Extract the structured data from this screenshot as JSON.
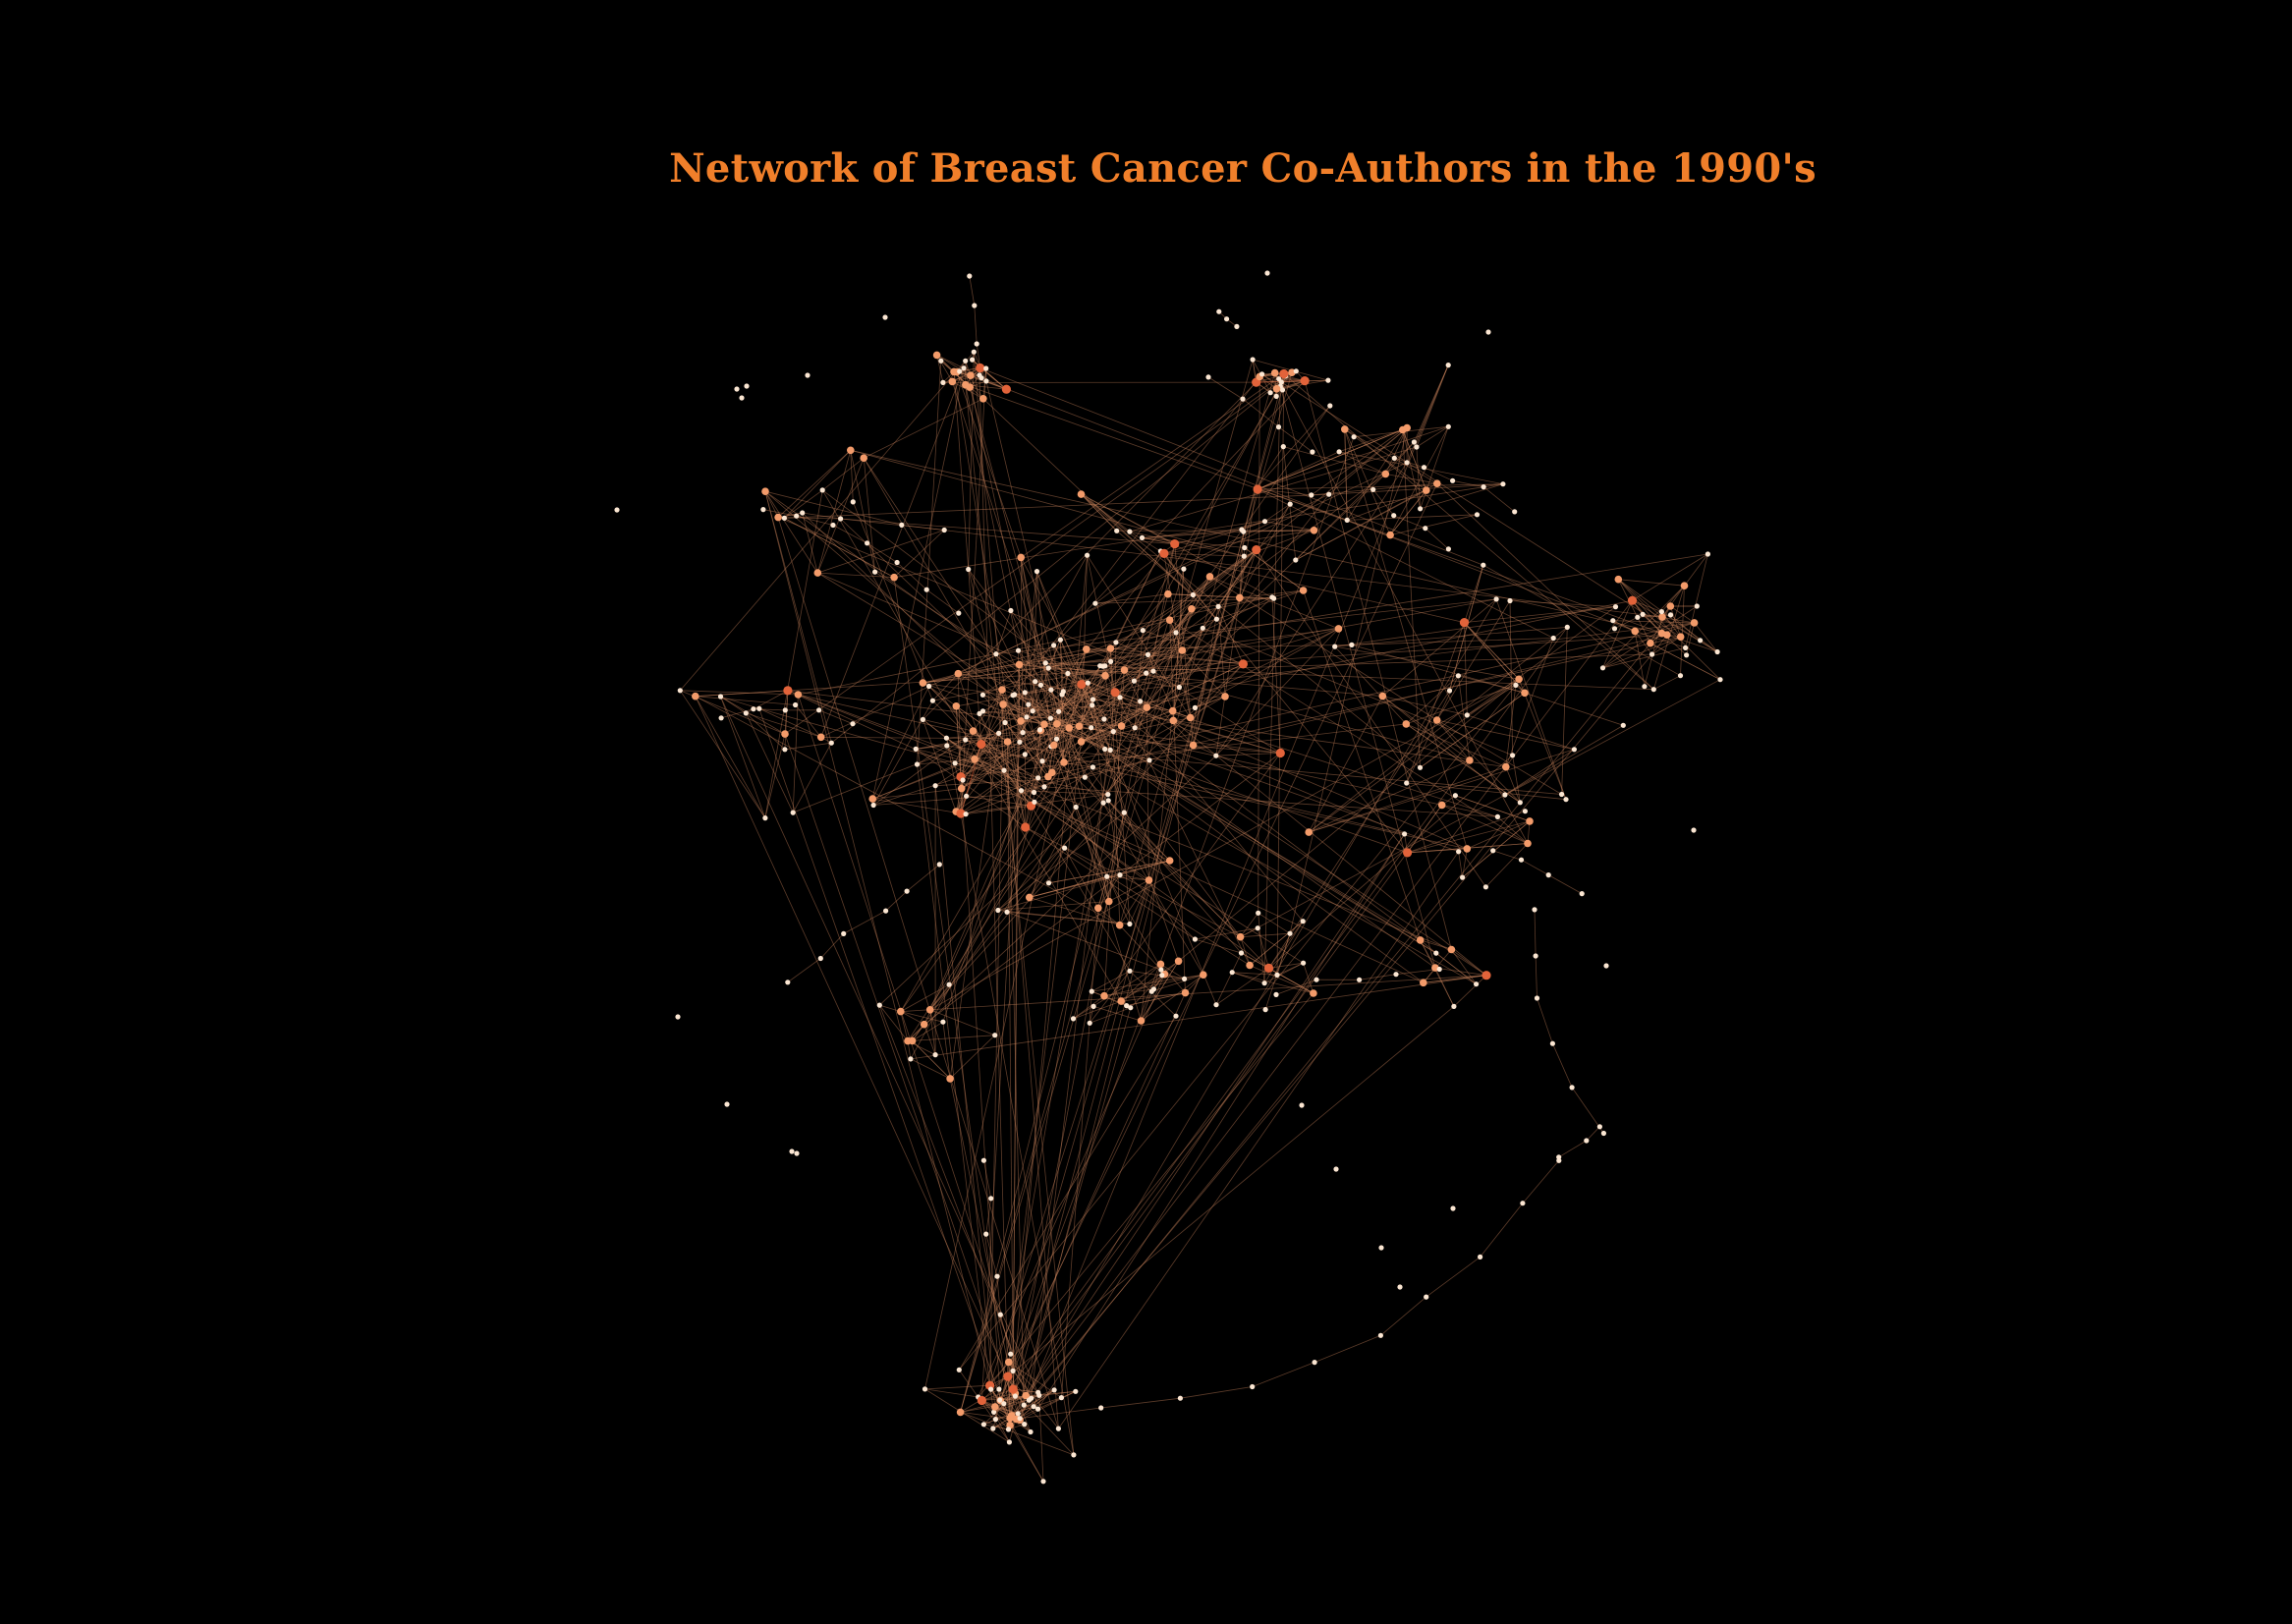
{
  "figure": {
    "title": "Network of Breast Cancer Co-Authors in the 1990's"
  },
  "colors": {
    "background": "#000000",
    "title": "#f07f2a",
    "edge": "#c9825a",
    "node_low_degree": "#fbe6d2",
    "node_mid_degree": "#f39b6a",
    "node_high_degree": "#c0281a"
  },
  "legend": []
}
